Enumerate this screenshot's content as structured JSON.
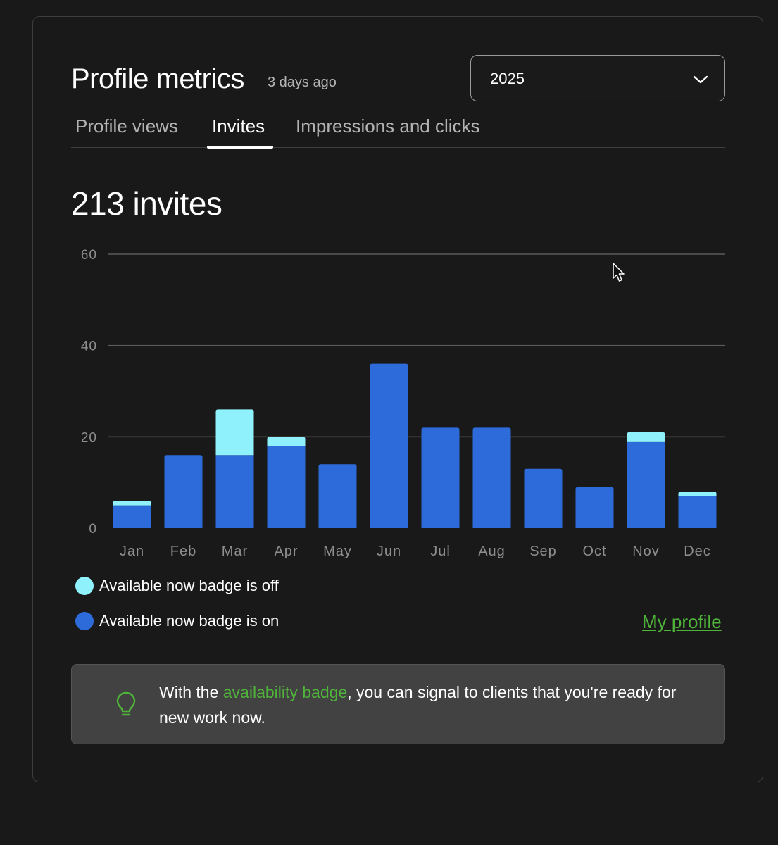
{
  "header": {
    "title": "Profile metrics",
    "updated": "3 days ago"
  },
  "year_select": {
    "value": "2025"
  },
  "tabs": [
    {
      "label": "Profile views",
      "active": false
    },
    {
      "label": "Invites",
      "active": true
    },
    {
      "label": "Impressions and clicks",
      "active": false
    }
  ],
  "total": "213 invites",
  "legend": {
    "off_label": "Available now badge is off",
    "on_label": "Available now badge is on"
  },
  "my_profile_link": "My profile",
  "tip": {
    "prefix": "With the ",
    "link": "availability badge",
    "suffix": ", you can signal to clients that you're ready for new work now."
  },
  "colors": {
    "badge_on": "#2d6bdb",
    "badge_off": "#8ff1fc",
    "accent_green": "#4fb43a"
  },
  "chart_data": {
    "type": "bar",
    "stacked": true,
    "categories": [
      "Jan",
      "Feb",
      "Mar",
      "Apr",
      "May",
      "Jun",
      "Jul",
      "Aug",
      "Sep",
      "Oct",
      "Nov",
      "Dec"
    ],
    "series": [
      {
        "name": "Available now badge is on",
        "color": "#2d6bdb",
        "values": [
          5,
          16,
          16,
          18,
          14,
          36,
          22,
          22,
          13,
          9,
          19,
          7
        ]
      },
      {
        "name": "Available now badge is off",
        "color": "#8ff1fc",
        "values": [
          1,
          0,
          10,
          2,
          0,
          0,
          0,
          0,
          0,
          0,
          2,
          1
        ]
      }
    ],
    "y_ticks": [
      0,
      20,
      40,
      60
    ],
    "ylim": [
      0,
      60
    ],
    "grid": true,
    "legend_position": "bottom-left"
  }
}
